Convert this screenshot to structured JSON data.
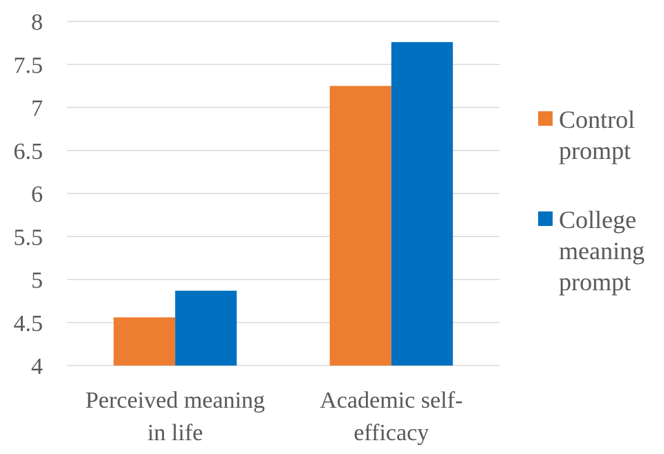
{
  "chart_data": {
    "type": "bar",
    "categories": [
      [
        "Perceived meaning",
        "in life"
      ],
      [
        "Academic self-",
        "efficacy"
      ]
    ],
    "series": [
      {
        "name": [
          "Control",
          "prompt"
        ],
        "color": "#ED7D31",
        "values": [
          4.56,
          7.25
        ]
      },
      {
        "name": [
          "College",
          "meaning",
          "prompt"
        ],
        "color": "#0070C0",
        "values": [
          4.87,
          7.76
        ]
      }
    ],
    "ylim": [
      4,
      8
    ],
    "yticks": [
      "4",
      "4.5",
      "5",
      "5.5",
      "6",
      "6.5",
      "7",
      "7.5",
      "8"
    ],
    "grid": true,
    "legend": "right"
  }
}
